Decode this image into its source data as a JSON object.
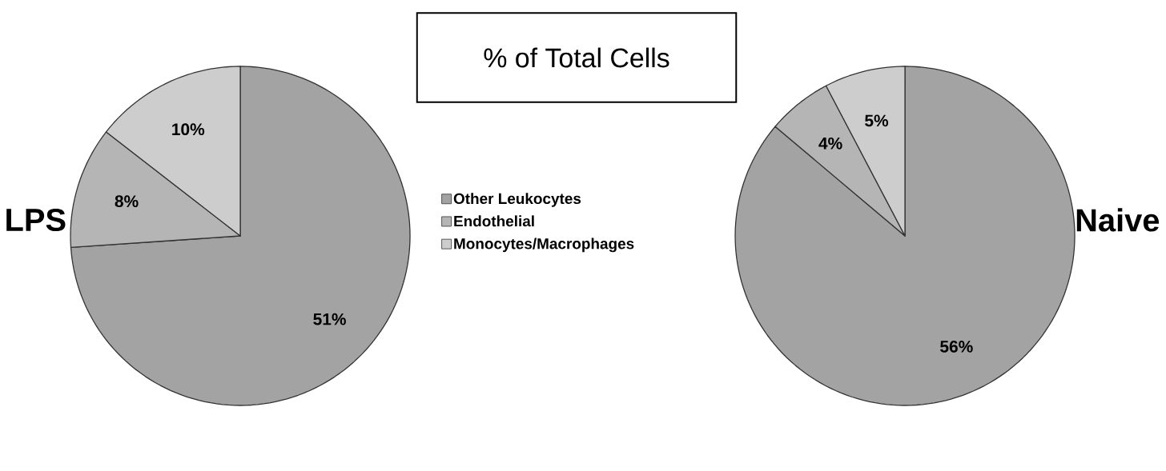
{
  "chart_data": [
    {
      "type": "pie",
      "title": "LPS",
      "legend_title": "% of Total Cells",
      "legend": "right",
      "categories": [
        "Other Leukocytes",
        "Endothelial",
        "Monocytes/Macrophages"
      ],
      "values": [
        51,
        8,
        10
      ],
      "value_labels": [
        "51%",
        "8%",
        "10%"
      ],
      "colors": [
        "#a3a3a3",
        "#b5b5b5",
        "#cdcdcd"
      ]
    },
    {
      "type": "pie",
      "title": "Naive",
      "categories": [
        null,
        null,
        null
      ],
      "values": [
        56,
        4,
        5
      ],
      "value_labels": [
        "56%",
        "4%",
        "5%"
      ],
      "colors": [
        "#a3a3a3",
        "#b5b5b5",
        "#cdcdcd"
      ]
    }
  ]
}
